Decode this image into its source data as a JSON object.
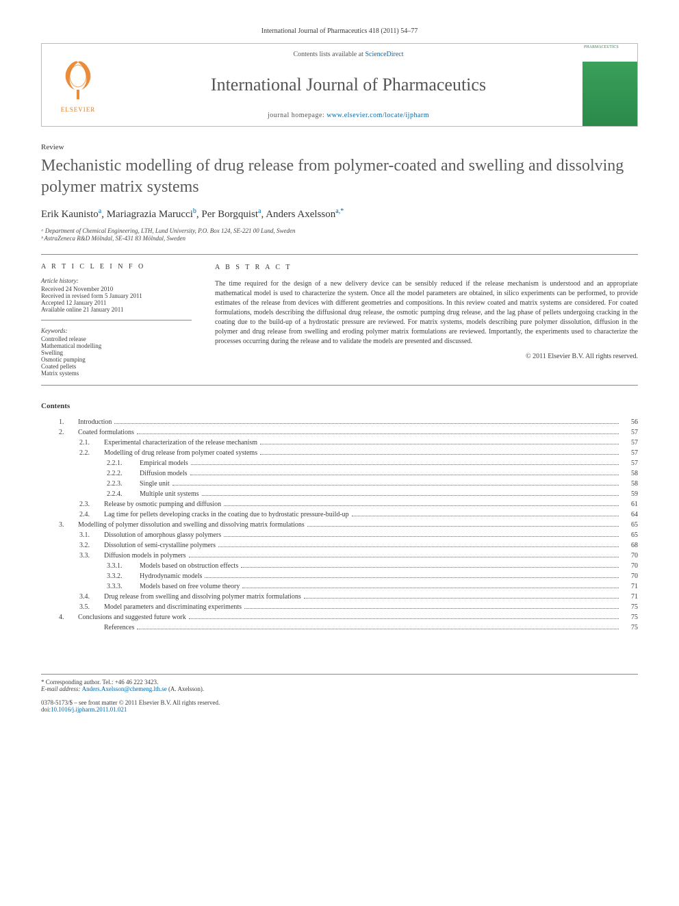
{
  "citation": "International Journal of Pharmaceutics 418 (2011) 54–77",
  "header": {
    "contents_prefix": "Contents lists available at ",
    "contents_link": "ScienceDirect",
    "journal": "International Journal of Pharmaceutics",
    "homepage_prefix": "journal homepage: ",
    "homepage_url": "www.elsevier.com/locate/ijpharm",
    "elsevier": "ELSEVIER",
    "cover_label": "PHARMACEUTICS"
  },
  "review_label": "Review",
  "title": "Mechanistic modelling of drug release from polymer-coated and swelling and dissolving polymer matrix systems",
  "authors": [
    {
      "name": "Erik Kaunisto",
      "aff": "a"
    },
    {
      "name": "Mariagrazia Marucci",
      "aff": "b"
    },
    {
      "name": "Per Borgquist",
      "aff": "a"
    },
    {
      "name": "Anders Axelsson",
      "aff": "a,*"
    }
  ],
  "affiliations": [
    "ᵃ Department of Chemical Engineering, LTH, Lund University, P.O. Box 124, SE-221 00 Lund, Sweden",
    "ᵇ AstraZeneca R&D Mölndal, SE-431 83 Mölndal, Sweden"
  ],
  "info_heading": "A R T I C L E   I N F O",
  "history_label": "Article history:",
  "history": [
    "Received 24 November 2010",
    "Received in revised form 5 January 2011",
    "Accepted 12 January 2011",
    "Available online 21 January 2011"
  ],
  "keywords_label": "Keywords:",
  "keywords": [
    "Controlled release",
    "Mathematical modelling",
    "Swelling",
    "Osmotic pumping",
    "Coated pellets",
    "Matrix systems"
  ],
  "abstract_heading": "A B S T R A C T",
  "abstract": "The time required for the design of a new delivery device can be sensibly reduced if the release mechanism is understood and an appropriate mathematical model is used to characterize the system. Once all the model parameters are obtained, in silico experiments can be performed, to provide estimates of the release from devices with different geometries and compositions. In this review coated and matrix systems are considered. For coated formulations, models describing the diffusional drug release, the osmotic pumping drug release, and the lag phase of pellets undergoing cracking in the coating due to the build-up of a hydrostatic pressure are reviewed. For matrix systems, models describing pure polymer dissolution, diffusion in the polymer and drug release from swelling and eroding polymer matrix formulations are reviewed. Importantly, the experiments used to characterize the processes occurring during the release and to validate the models are presented and discussed.",
  "copyright": "© 2011 Elsevier B.V. All rights reserved.",
  "contents_heading": "Contents",
  "toc": [
    {
      "n": "1.",
      "t": "Introduction",
      "p": "56",
      "l": 1
    },
    {
      "n": "2.",
      "t": "Coated formulations",
      "p": "57",
      "l": 1
    },
    {
      "n": "2.1.",
      "t": "Experimental characterization of the release mechanism",
      "p": "57",
      "l": 2
    },
    {
      "n": "2.2.",
      "t": "Modelling of drug release from polymer coated systems",
      "p": "57",
      "l": 2
    },
    {
      "n": "2.2.1.",
      "t": "Empirical models",
      "p": "57",
      "l": 3
    },
    {
      "n": "2.2.2.",
      "t": "Diffusion models",
      "p": "58",
      "l": 3
    },
    {
      "n": "2.2.3.",
      "t": "Single unit",
      "p": "58",
      "l": 3
    },
    {
      "n": "2.2.4.",
      "t": "Multiple unit systems",
      "p": "59",
      "l": 3
    },
    {
      "n": "2.3.",
      "t": "Release by osmotic pumping and diffusion",
      "p": "61",
      "l": 2
    },
    {
      "n": "2.4.",
      "t": "Lag time for pellets developing cracks in the coating due to hydrostatic pressure-build-up",
      "p": "64",
      "l": 2
    },
    {
      "n": "3.",
      "t": "Modelling of polymer dissolution and swelling and dissolving matrix formulations",
      "p": "65",
      "l": 1
    },
    {
      "n": "3.1.",
      "t": "Dissolution of amorphous glassy polymers",
      "p": "65",
      "l": 2
    },
    {
      "n": "3.2.",
      "t": "Dissolution of semi-crystalline polymers",
      "p": "68",
      "l": 2
    },
    {
      "n": "3.3.",
      "t": "Diffusion models in polymers",
      "p": "70",
      "l": 2
    },
    {
      "n": "3.3.1.",
      "t": "Models based on obstruction effects",
      "p": "70",
      "l": 3
    },
    {
      "n": "3.3.2.",
      "t": "Hydrodynamic models",
      "p": "70",
      "l": 3
    },
    {
      "n": "3.3.3.",
      "t": "Models based on free volume theory",
      "p": "71",
      "l": 3
    },
    {
      "n": "3.4.",
      "t": "Drug release from swelling and dissolving polymer matrix formulations",
      "p": "71",
      "l": 2
    },
    {
      "n": "3.5.",
      "t": "Model parameters and discriminating experiments",
      "p": "75",
      "l": 2
    },
    {
      "n": "4.",
      "t": "Conclusions and suggested future work",
      "p": "75",
      "l": 1
    },
    {
      "n": "",
      "t": "References",
      "p": "75",
      "l": 2
    }
  ],
  "corr_label": "* Corresponding author. Tel.: +46 46 222 3423.",
  "email_label": "E-mail address: ",
  "email": "Anders.Axelsson@chemeng.lth.se",
  "email_suffix": " (A. Axelsson).",
  "issn_line": "0378-5173/$ – see front matter © 2011 Elsevier B.V. All rights reserved.",
  "doi_prefix": "doi:",
  "doi": "10.1016/j.ijpharm.2011.01.021"
}
